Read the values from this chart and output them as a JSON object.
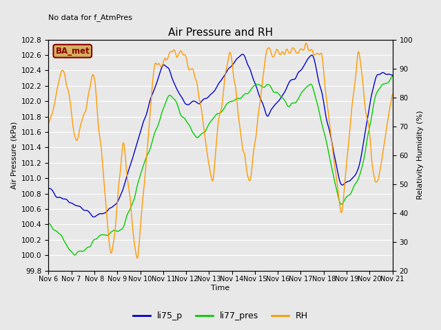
{
  "title": "Air Pressure and RH",
  "no_data_text": "No data for f_AtmPres",
  "ba_met_label": "BA_met",
  "ylabel_left": "Air Pressure (kPa)",
  "ylabel_right": "Relativity Humidity (%)",
  "xlabel": "Time",
  "ylim_left": [
    99.8,
    102.8
  ],
  "ylim_right": [
    20,
    100
  ],
  "yticks_left": [
    99.8,
    100.0,
    100.2,
    100.4,
    100.6,
    100.8,
    101.0,
    101.2,
    101.4,
    101.6,
    101.8,
    102.0,
    102.2,
    102.4,
    102.6,
    102.8
  ],
  "yticks_right": [
    20,
    30,
    40,
    50,
    60,
    70,
    80,
    90,
    100
  ],
  "xtick_labels": [
    "Nov 6",
    "Nov 7",
    "Nov 8",
    "Nov 9",
    "Nov 10",
    "Nov 11",
    "Nov 12",
    "Nov 13",
    "Nov 14",
    "Nov 15",
    "Nov 16",
    "Nov 17",
    "Nov 18",
    "Nov 19",
    "Nov 20",
    "Nov 21"
  ],
  "legend_labels": [
    "li75_p",
    "li77_pres",
    "RH"
  ],
  "line_colors": [
    "#0000cc",
    "#00cc00",
    "#ff9900"
  ],
  "background_color": "#e8e8e8",
  "title_fontsize": 11,
  "label_fontsize": 8,
  "tick_fontsize": 7.5
}
